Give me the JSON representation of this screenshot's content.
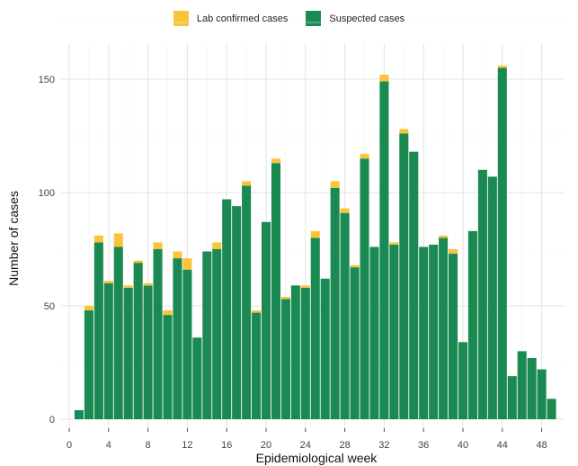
{
  "chart_data": {
    "type": "bar",
    "stacked": true,
    "xlabel": "Epidemiological week",
    "ylabel": "Number of cases",
    "x_ticks": [
      0,
      4,
      8,
      12,
      16,
      20,
      24,
      28,
      32,
      36,
      40,
      44,
      48
    ],
    "y_ticks": [
      0,
      50,
      100,
      150
    ],
    "xlim": [
      -0.5,
      50
    ],
    "ylim": [
      0,
      160
    ],
    "grid": true,
    "legend_position": "top",
    "x": [
      1,
      2,
      3,
      4,
      5,
      6,
      7,
      8,
      9,
      10,
      11,
      12,
      13,
      14,
      15,
      16,
      17,
      18,
      19,
      20,
      21,
      22,
      23,
      24,
      25,
      26,
      27,
      28,
      29,
      30,
      31,
      32,
      33,
      34,
      35,
      36,
      37,
      38,
      39,
      40,
      41,
      42,
      43,
      44,
      45,
      46,
      47,
      48,
      49
    ],
    "series": [
      {
        "name": "Suspected cases",
        "color": "#1a8a52",
        "values": [
          4,
          48,
          78,
          60,
          76,
          58,
          69,
          59,
          75,
          46,
          71,
          66,
          36,
          74,
          75,
          97,
          94,
          103,
          47,
          87,
          113,
          53,
          59,
          58,
          80,
          62,
          102,
          91,
          67,
          115,
          76,
          149,
          77,
          126,
          118,
          76,
          77,
          80,
          73,
          34,
          83,
          110,
          107,
          155,
          19,
          30,
          27,
          22,
          9
        ]
      },
      {
        "name": "Lab confirmed cases",
        "color": "#f9c43a",
        "values": [
          0,
          2,
          3,
          1,
          6,
          1,
          1,
          1,
          3,
          2,
          3,
          5,
          0,
          0,
          3,
          0,
          0,
          2,
          1,
          0,
          2,
          1,
          0,
          1,
          3,
          0,
          3,
          2,
          1,
          2,
          0,
          3,
          1,
          2,
          0,
          0,
          0,
          1,
          2,
          0,
          0,
          0,
          0,
          1,
          0,
          0,
          0,
          0,
          0
        ]
      }
    ]
  }
}
